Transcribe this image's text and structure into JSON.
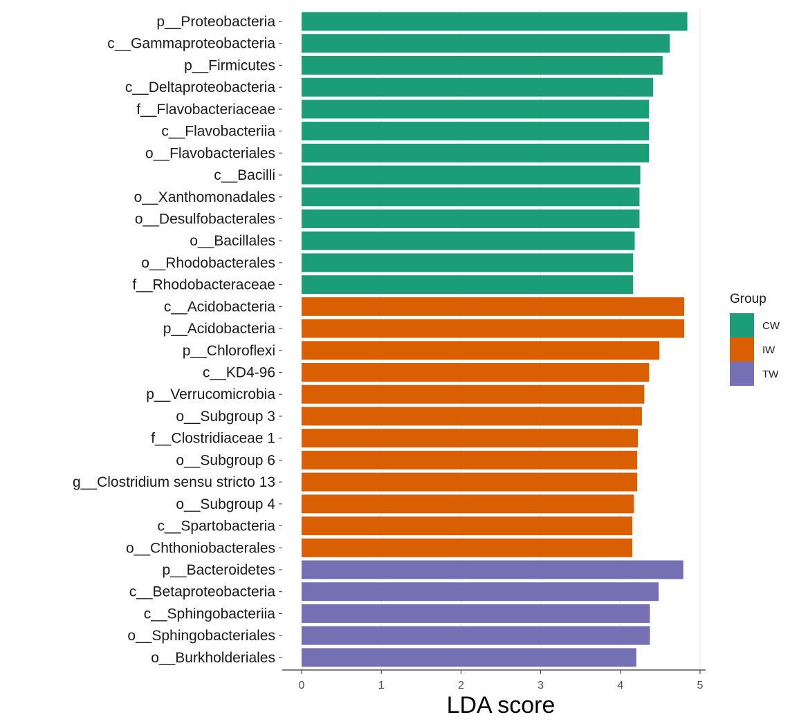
{
  "chart_data": {
    "type": "bar",
    "orientation": "horizontal",
    "xlabel": "LDA score",
    "ylabel": "",
    "xlim": [
      0,
      5
    ],
    "xticks": [
      0,
      1,
      2,
      3,
      4,
      5
    ],
    "grid": "vertical major lines",
    "legend": {
      "title": "Group",
      "position": "right",
      "entries": [
        {
          "name": "CW",
          "color": "#1b9e77"
        },
        {
          "name": "IW",
          "color": "#d95f02"
        },
        {
          "name": "TW",
          "color": "#7570b3"
        }
      ]
    },
    "bars": [
      {
        "label": "p__Proteobacteria",
        "value": 4.84,
        "group": "CW"
      },
      {
        "label": "c__Gammaproteobacteria",
        "value": 4.62,
        "group": "CW"
      },
      {
        "label": "p__Firmicutes",
        "value": 4.53,
        "group": "CW"
      },
      {
        "label": "c__Deltaproteobacteria",
        "value": 4.41,
        "group": "CW"
      },
      {
        "label": "f__Flavobacteriaceae",
        "value": 4.36,
        "group": "CW"
      },
      {
        "label": "c__Flavobacteriia",
        "value": 4.36,
        "group": "CW"
      },
      {
        "label": "o__Flavobacteriales",
        "value": 4.36,
        "group": "CW"
      },
      {
        "label": "c__Bacilli",
        "value": 4.25,
        "group": "CW"
      },
      {
        "label": "o__Xanthomonadales",
        "value": 4.24,
        "group": "CW"
      },
      {
        "label": "o__Desulfobacterales",
        "value": 4.24,
        "group": "CW"
      },
      {
        "label": "o__Bacillales",
        "value": 4.18,
        "group": "CW"
      },
      {
        "label": "o__Rhodobacterales",
        "value": 4.16,
        "group": "CW"
      },
      {
        "label": "f__Rhodobacteraceae",
        "value": 4.16,
        "group": "CW"
      },
      {
        "label": "c__Acidobacteria",
        "value": 4.8,
        "group": "IW"
      },
      {
        "label": "p__Acidobacteria",
        "value": 4.8,
        "group": "IW"
      },
      {
        "label": "p__Chloroflexi",
        "value": 4.49,
        "group": "IW"
      },
      {
        "label": "c__KD4-96",
        "value": 4.36,
        "group": "IW"
      },
      {
        "label": "p__Verrucomicrobia",
        "value": 4.3,
        "group": "IW"
      },
      {
        "label": "o__Subgroup 3",
        "value": 4.27,
        "group": "IW"
      },
      {
        "label": "f__Clostridiaceae 1",
        "value": 4.22,
        "group": "IW"
      },
      {
        "label": "o__Subgroup 6",
        "value": 4.21,
        "group": "IW"
      },
      {
        "label": "g__Clostridium sensu stricto 13",
        "value": 4.21,
        "group": "IW"
      },
      {
        "label": "o__Subgroup 4",
        "value": 4.17,
        "group": "IW"
      },
      {
        "label": "c__Spartobacteria",
        "value": 4.15,
        "group": "IW"
      },
      {
        "label": "o__Chthoniobacterales",
        "value": 4.15,
        "group": "IW"
      },
      {
        "label": "p__Bacteroidetes",
        "value": 4.79,
        "group": "TW"
      },
      {
        "label": "c__Betaproteobacteria",
        "value": 4.48,
        "group": "TW"
      },
      {
        "label": "c__Sphingobacteriia",
        "value": 4.37,
        "group": "TW"
      },
      {
        "label": "o__Sphingobacteriales",
        "value": 4.37,
        "group": "TW"
      },
      {
        "label": "o__Burkholderiales",
        "value": 4.2,
        "group": "TW"
      }
    ]
  }
}
